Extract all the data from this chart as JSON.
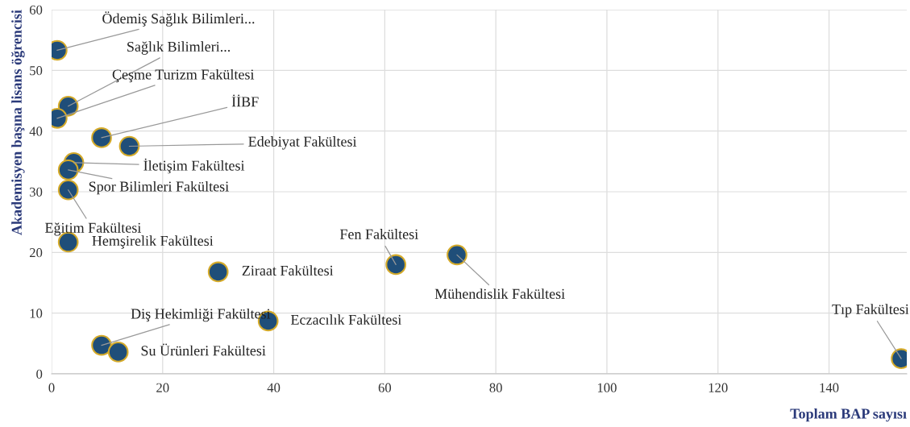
{
  "chart_data": {
    "type": "scatter",
    "xlabel": "Toplam BAP sayısı",
    "ylabel": "Akademisyen başına lisans öğrencisi",
    "x": [
      1,
      3,
      1,
      9,
      14,
      4,
      3,
      3,
      3,
      30,
      9,
      12,
      39,
      62,
      73,
      153
    ],
    "series": [
      {
        "color": "#1f4e79",
        "values": [
          53.3,
          44.1,
          42.1,
          38.9,
          37.5,
          34.8,
          33.6,
          30.3,
          21.7,
          16.8,
          4.7,
          3.6,
          8.7,
          18.0,
          19.6,
          2.5
        ]
      }
    ],
    "annotations": [
      {
        "text": "Ödemiş Sağlık Bilimleri...",
        "x": 1,
        "y": 53.3
      },
      {
        "text": "Sağlık Bilimleri...",
        "x": 3,
        "y": 44.1
      },
      {
        "text": "Çeşme Turizm Fakültesi",
        "x": 1,
        "y": 42.1
      },
      {
        "text": "İİBF",
        "x": 9,
        "y": 38.9
      },
      {
        "text": "Edebiyat Fakültesi",
        "x": 14,
        "y": 37.5
      },
      {
        "text": "İletişim Fakültesi",
        "x": 4,
        "y": 34.8
      },
      {
        "text": "Spor Bilimleri Fakültesi",
        "x": 3,
        "y": 33.6
      },
      {
        "text": "Eğitim Fakültesi",
        "x": 3,
        "y": 30.3
      },
      {
        "text": "Hemşirelik Fakültesi",
        "x": 3,
        "y": 21.7
      },
      {
        "text": "Ziraat Fakültesi",
        "x": 30,
        "y": 16.8
      },
      {
        "text": "Diş Hekimliği Fakültesi",
        "x": 9,
        "y": 4.7
      },
      {
        "text": "Su Ürünleri Fakültesi",
        "x": 12,
        "y": 3.6
      },
      {
        "text": "Eczacılık Fakültesi",
        "x": 39,
        "y": 8.7
      },
      {
        "text": "Fen Fakültesi",
        "x": 62,
        "y": 18.0
      },
      {
        "text": "Mühendislik Fakültesi",
        "x": 73,
        "y": 19.6
      },
      {
        "text": "Tıp Fakültesi",
        "x": 153,
        "y": 2.5
      }
    ],
    "xlim": [
      0,
      154
    ],
    "xticks": [
      0,
      20,
      40,
      60,
      80,
      100,
      120,
      140
    ],
    "ylim": [
      0,
      60
    ],
    "yticks": [
      0,
      10,
      20,
      30,
      40,
      50,
      60
    ],
    "grid": true,
    "marker": "circle"
  }
}
